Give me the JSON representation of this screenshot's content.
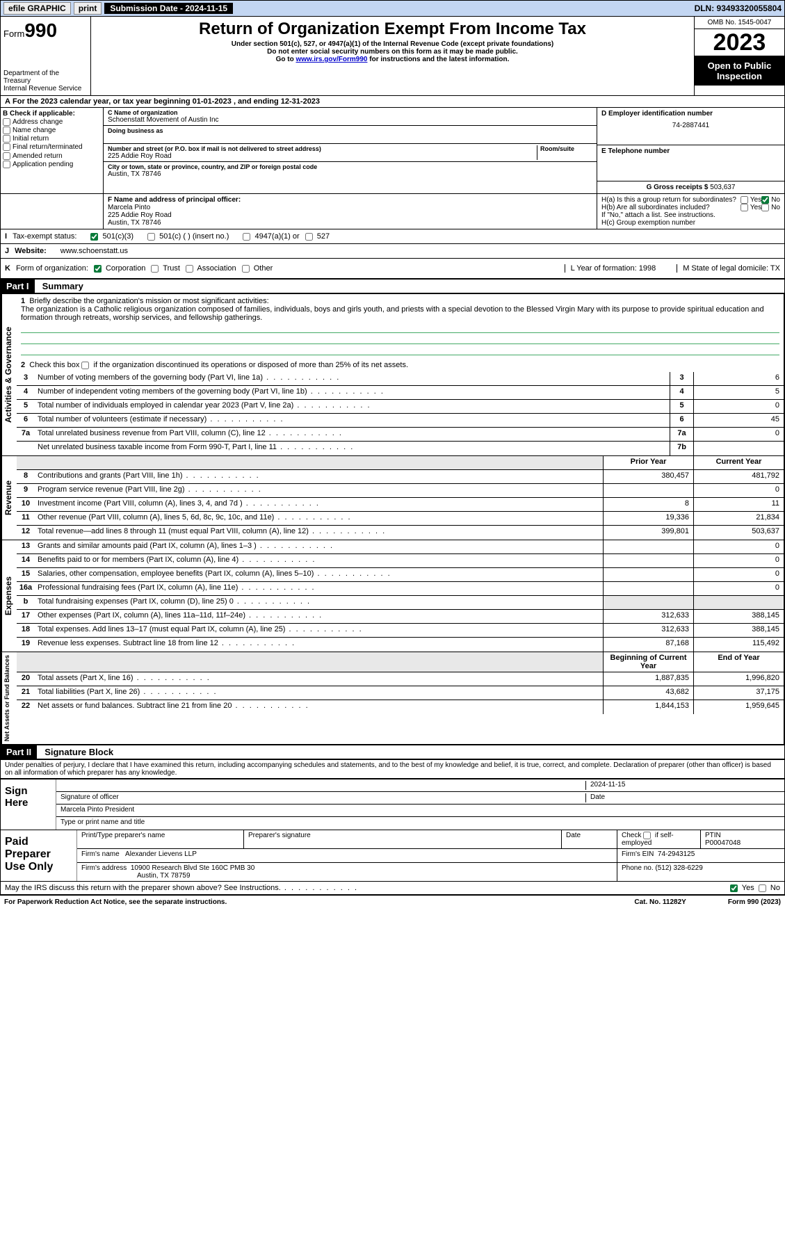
{
  "topbar": {
    "efile": "efile GRAPHIC",
    "print": "print",
    "subdate_label": "Submission Date - 2024-11-15",
    "dln": "DLN: 93493320055804"
  },
  "header": {
    "form": "Form",
    "formnum": "990",
    "dept": "Department of the Treasury",
    "irs": "Internal Revenue Service",
    "title": "Return of Organization Exempt From Income Tax",
    "sub1": "Under section 501(c), 527, or 4947(a)(1) of the Internal Revenue Code (except private foundations)",
    "sub2": "Do not enter social security numbers on this form as it may be made public.",
    "sub3_pre": "Go to ",
    "sub3_link": "www.irs.gov/Form990",
    "sub3_post": " for instructions and the latest information.",
    "omb": "OMB No. 1545-0047",
    "year": "2023",
    "open": "Open to Public Inspection"
  },
  "lineA": "For the 2023 calendar year, or tax year beginning 01-01-2023   , and ending 12-31-2023",
  "boxB": {
    "title": "B Check if applicable:",
    "items": [
      "Address change",
      "Name change",
      "Initial return",
      "Final return/terminated",
      "Amended return",
      "Application pending"
    ]
  },
  "boxC": {
    "label": "C Name of organization",
    "name": "Schoenstatt Movement of Austin Inc",
    "dba": "Doing business as",
    "addr_label": "Number and street (or P.O. box if mail is not delivered to street address)",
    "room": "Room/suite",
    "addr": "225 Addie Roy Road",
    "city_label": "City or town, state or province, country, and ZIP or foreign postal code",
    "city": "Austin, TX  78746"
  },
  "boxD": {
    "label": "D Employer identification number",
    "val": "74-2887441"
  },
  "boxE": {
    "label": "E Telephone number",
    "val": ""
  },
  "boxG": {
    "label": "G Gross receipts $",
    "val": "503,637"
  },
  "boxF": {
    "label": "F Name and address of principal officer:",
    "l1": "Marcela Pinto",
    "l2": "225 Addie Roy Road",
    "l3": "Austin, TX  78746"
  },
  "boxH": {
    "a": "H(a)  Is this a group return for subordinates?",
    "b": "H(b)  Are all subordinates included?",
    "bnote": "If \"No,\" attach a list. See instructions.",
    "c": "H(c)  Group exemption number"
  },
  "rowI": "Tax-exempt status:",
  "rowI_opts": {
    "a": "501(c)(3)",
    "b": "501(c) (  ) (insert no.)",
    "c": "4947(a)(1) or",
    "d": "527"
  },
  "rowJ": {
    "label": "Website:",
    "val": "www.schoenstatt.us"
  },
  "rowK": {
    "label": "Form of organization:",
    "opts": [
      "Corporation",
      "Trust",
      "Association",
      "Other"
    ],
    "L": "L Year of formation: 1998",
    "M": "M State of legal domicile: TX"
  },
  "part1": {
    "title": "Part I",
    "name": "Summary"
  },
  "gov": {
    "q1_label": "Briefly describe the organization's mission or most significant activities:",
    "q1_text": "The organization is a Catholic religious organization composed of families, individuals, boys and girls youth, and priests with a special devotion to the Blessed Virgin Mary with its purpose to provide spiritual education and formation through retreats, worship services, and fellowship gatherings.",
    "q2": "Check this box      if the organization discontinued its operations or disposed of more than 25% of its net assets.",
    "rows": [
      {
        "n": "3",
        "d": "Number of voting members of the governing body (Part VI, line 1a)",
        "box": "3",
        "v": "6"
      },
      {
        "n": "4",
        "d": "Number of independent voting members of the governing body (Part VI, line 1b)",
        "box": "4",
        "v": "5"
      },
      {
        "n": "5",
        "d": "Total number of individuals employed in calendar year 2023 (Part V, line 2a)",
        "box": "5",
        "v": "0"
      },
      {
        "n": "6",
        "d": "Total number of volunteers (estimate if necessary)",
        "box": "6",
        "v": "45"
      },
      {
        "n": "7a",
        "d": "Total unrelated business revenue from Part VIII, column (C), line 12",
        "box": "7a",
        "v": "0"
      },
      {
        "n": "",
        "d": "Net unrelated business taxable income from Form 990-T, Part I, line 11",
        "box": "7b",
        "v": ""
      }
    ]
  },
  "cols": {
    "prior": "Prior Year",
    "current": "Current Year"
  },
  "rev": [
    {
      "n": "8",
      "d": "Contributions and grants (Part VIII, line 1h)",
      "p": "380,457",
      "c": "481,792"
    },
    {
      "n": "9",
      "d": "Program service revenue (Part VIII, line 2g)",
      "p": "",
      "c": "0"
    },
    {
      "n": "10",
      "d": "Investment income (Part VIII, column (A), lines 3, 4, and 7d )",
      "p": "8",
      "c": "11"
    },
    {
      "n": "11",
      "d": "Other revenue (Part VIII, column (A), lines 5, 6d, 8c, 9c, 10c, and 11e)",
      "p": "19,336",
      "c": "21,834"
    },
    {
      "n": "12",
      "d": "Total revenue—add lines 8 through 11 (must equal Part VIII, column (A), line 12)",
      "p": "399,801",
      "c": "503,637"
    }
  ],
  "exp": [
    {
      "n": "13",
      "d": "Grants and similar amounts paid (Part IX, column (A), lines 1–3 )",
      "p": "",
      "c": "0"
    },
    {
      "n": "14",
      "d": "Benefits paid to or for members (Part IX, column (A), line 4)",
      "p": "",
      "c": "0"
    },
    {
      "n": "15",
      "d": "Salaries, other compensation, employee benefits (Part IX, column (A), lines 5–10)",
      "p": "",
      "c": "0"
    },
    {
      "n": "16a",
      "d": "Professional fundraising fees (Part IX, column (A), line 11e)",
      "p": "",
      "c": "0"
    },
    {
      "n": "b",
      "d": "Total fundraising expenses (Part IX, column (D), line 25) 0",
      "p": "shade",
      "c": "shade"
    },
    {
      "n": "17",
      "d": "Other expenses (Part IX, column (A), lines 11a–11d, 11f–24e)",
      "p": "312,633",
      "c": "388,145"
    },
    {
      "n": "18",
      "d": "Total expenses. Add lines 13–17 (must equal Part IX, column (A), line 25)",
      "p": "312,633",
      "c": "388,145"
    },
    {
      "n": "19",
      "d": "Revenue less expenses. Subtract line 18 from line 12",
      "p": "87,168",
      "c": "115,492"
    }
  ],
  "cols2": {
    "begin": "Beginning of Current Year",
    "end": "End of Year"
  },
  "net": [
    {
      "n": "20",
      "d": "Total assets (Part X, line 16)",
      "p": "1,887,835",
      "c": "1,996,820"
    },
    {
      "n": "21",
      "d": "Total liabilities (Part X, line 26)",
      "p": "43,682",
      "c": "37,175"
    },
    {
      "n": "22",
      "d": "Net assets or fund balances. Subtract line 21 from line 20",
      "p": "1,844,153",
      "c": "1,959,645"
    }
  ],
  "part2": {
    "title": "Part II",
    "name": "Signature Block"
  },
  "perjury": "Under penalties of perjury, I declare that I have examined this return, including accompanying schedules and statements, and to the best of my knowledge and belief, it is true, correct, and complete. Declaration of preparer (other than officer) is based on all information of which preparer has any knowledge.",
  "sign": {
    "label": "Sign Here",
    "sig_of": "Signature of officer",
    "date": "Date",
    "dateval": "2024-11-15",
    "name": "Marcela Pinto President",
    "type": "Type or print name and title"
  },
  "paid": {
    "label": "Paid Preparer Use Only",
    "h1": "Print/Type preparer's name",
    "h2": "Preparer's signature",
    "h3": "Date",
    "h4_a": "Check",
    "h4_b": "if self-employed",
    "h5": "PTIN",
    "ptin": "P00047048",
    "firm_label": "Firm's name",
    "firm": "Alexander Lievens LLP",
    "ein_label": "Firm's EIN",
    "ein": "74-2943125",
    "addr_label": "Firm's address",
    "addr1": "10900 Research Blvd Ste 160C PMB 30",
    "addr2": "Austin, TX  78759",
    "phone_label": "Phone no.",
    "phone": "(512) 328-6229"
  },
  "discuss": "May the IRS discuss this return with the preparer shown above? See Instructions.",
  "footer": {
    "l": "For Paperwork Reduction Act Notice, see the separate instructions.",
    "m": "Cat. No. 11282Y",
    "r": "Form 990 (2023)"
  },
  "vlabels": {
    "gov": "Activities & Governance",
    "rev": "Revenue",
    "exp": "Expenses",
    "net": "Net Assets or Fund Balances"
  }
}
